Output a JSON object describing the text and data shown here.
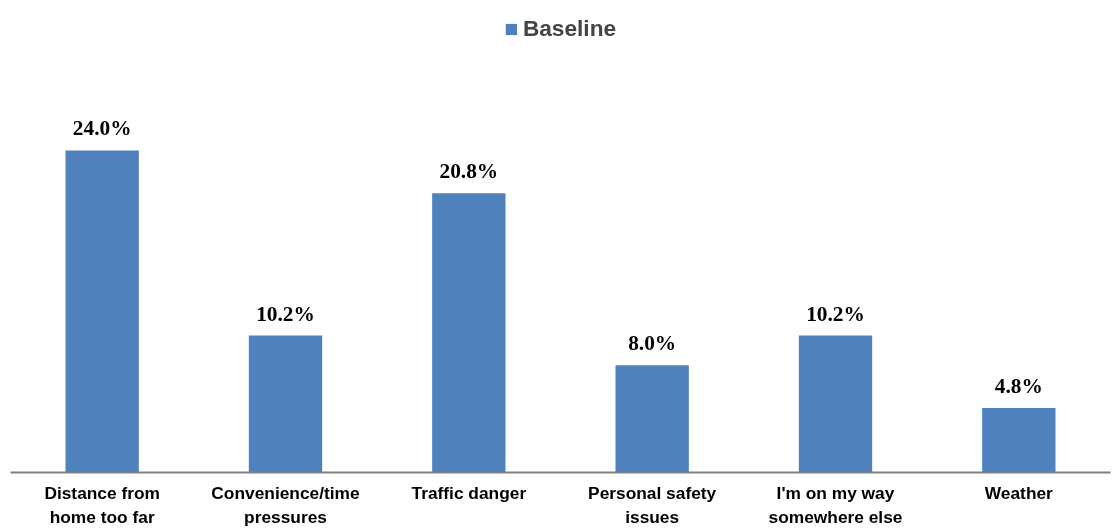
{
  "chart_data": {
    "type": "bar",
    "categories": [
      "Distance from home too far",
      "Convenience/time pressures",
      "Traffic danger",
      "Personal safety issues",
      "I'm on my way somewhere else",
      "Weather"
    ],
    "series": [
      {
        "name": "Baseline",
        "color": "#4f81bd",
        "values": [
          24.0,
          10.2,
          20.8,
          8.0,
          10.2,
          4.8
        ],
        "value_labels": [
          "24.0%",
          "10.2%",
          "20.8%",
          "8.0%",
          "10.2%",
          "4.8%"
        ]
      }
    ],
    "legend": "top",
    "tick_labels": "x"
  }
}
